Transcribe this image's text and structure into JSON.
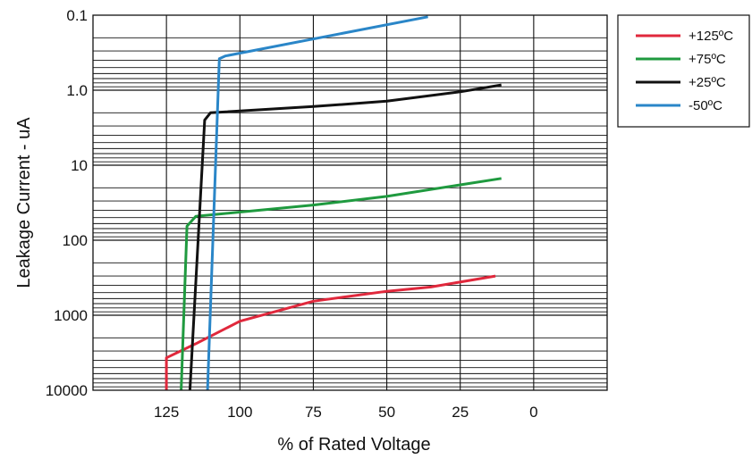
{
  "chart_data": {
    "type": "line",
    "xlabel": "% of Rated Voltage",
    "ylabel": "Leakage Current - uA",
    "x_reversed": true,
    "xlim": [
      150,
      -25
    ],
    "x_ticks": [
      125,
      100,
      75,
      50,
      25,
      0
    ],
    "y_scale": "log",
    "y_inverted": true,
    "ylim": [
      0.1,
      10000
    ],
    "y_ticks": [
      0.1,
      1.0,
      10,
      100,
      1000,
      10000
    ],
    "y_tick_labels": [
      "0.1",
      "1.0",
      "10",
      "100",
      "1000",
      "10000"
    ],
    "grid": true,
    "legend_position": "outside-top-right",
    "series": [
      {
        "name": "+125ºC",
        "color": "#e0283c",
        "points": [
          [
            125,
            10000
          ],
          [
            125,
            3700
          ],
          [
            115,
            2400
          ],
          [
            100,
            1200
          ],
          [
            75,
            650
          ],
          [
            50,
            480
          ],
          [
            35,
            420
          ],
          [
            13,
            300
          ]
        ]
      },
      {
        "name": "+75ºC",
        "color": "#1f9a3f",
        "points": [
          [
            120,
            10000
          ],
          [
            118,
            65
          ],
          [
            115,
            48
          ],
          [
            75,
            34
          ],
          [
            50,
            26
          ],
          [
            11,
            15
          ]
        ]
      },
      {
        "name": "+25ºC",
        "color": "#111111",
        "points": [
          [
            117,
            10000
          ],
          [
            112,
            2.5
          ],
          [
            110,
            2.0
          ],
          [
            75,
            1.65
          ],
          [
            50,
            1.4
          ],
          [
            25,
            1.05
          ],
          [
            11,
            0.85
          ]
        ]
      },
      {
        "name": "-50ºC",
        "color": "#2a86c8",
        "points": [
          [
            111,
            10000
          ],
          [
            107,
            0.38
          ],
          [
            105,
            0.35
          ],
          [
            36,
            0.105
          ]
        ]
      }
    ]
  }
}
